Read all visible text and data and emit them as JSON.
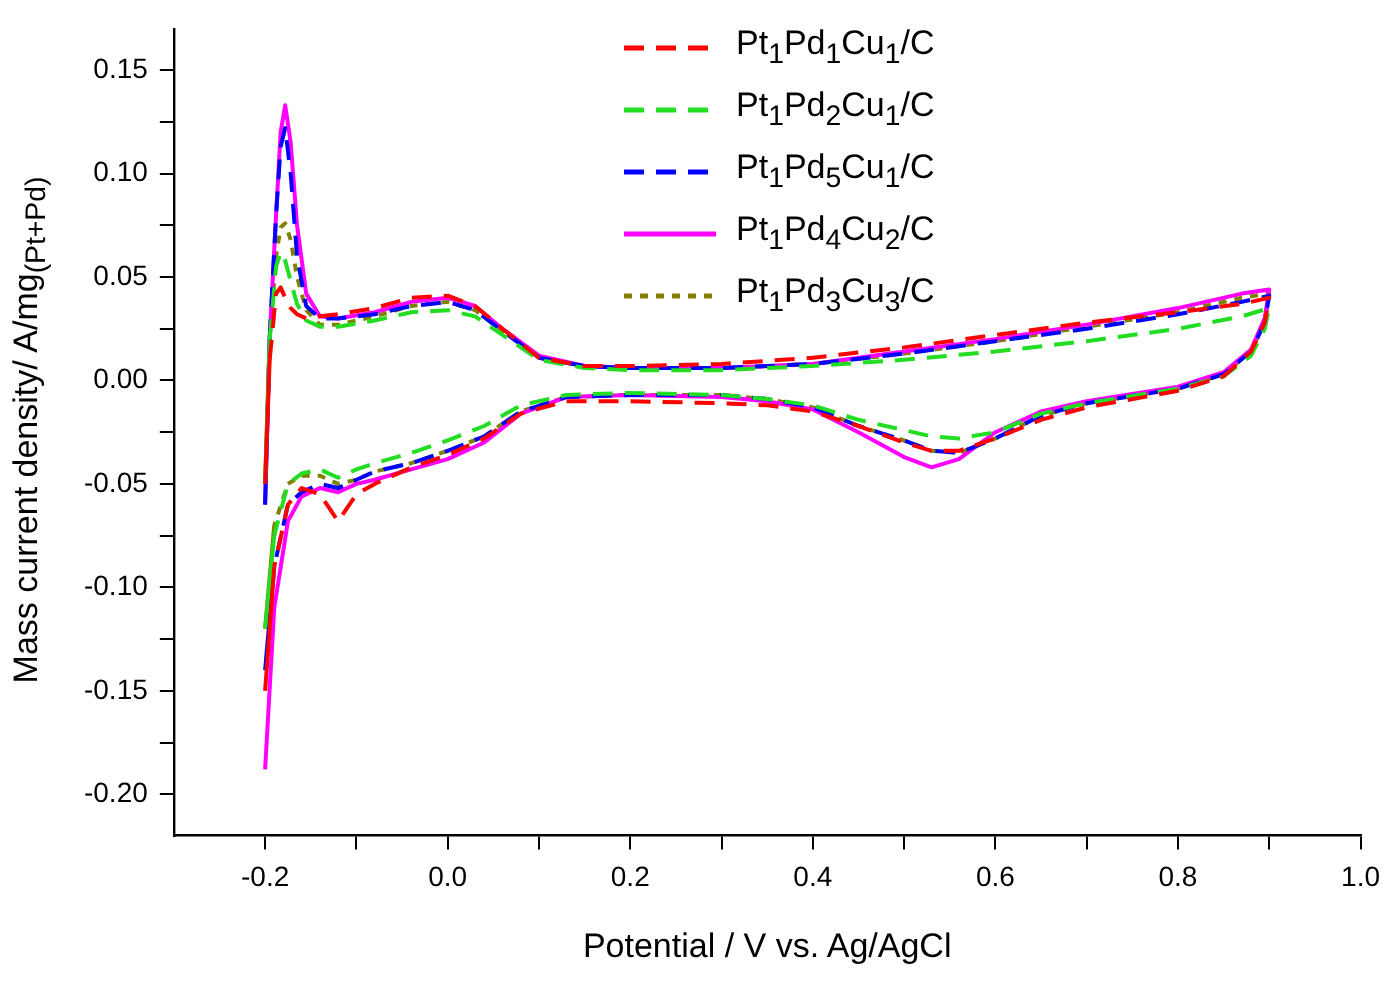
{
  "chart_data": {
    "type": "line",
    "xlabel": "Potential / V vs. Ag/AgCl",
    "ylabel": "Mass current density/ A/mg$_{(Pt+Pd)}$",
    "x": [
      -0.2,
      -0.195,
      -0.188,
      -0.183,
      -0.178,
      -0.172,
      -0.165,
      -0.155,
      -0.14,
      -0.12,
      -0.08,
      -0.04,
      0.0,
      0.03,
      0.06,
      0.1,
      0.15,
      0.2,
      0.3,
      0.4,
      0.5,
      0.6,
      0.7,
      0.8,
      0.87,
      0.9,
      0.895,
      0.88,
      0.85,
      0.8,
      0.7,
      0.65,
      0.6,
      0.56,
      0.53,
      0.5,
      0.45,
      0.4,
      0.35,
      0.3,
      0.2,
      0.13,
      0.08,
      0.04,
      0.0,
      -0.04,
      -0.08,
      -0.1,
      -0.12,
      -0.14,
      -0.16,
      -0.175,
      -0.19,
      -0.2
    ],
    "series": [
      {
        "name": "Pt$_{1}$Pd$_{1}$Cu$_{1}$/C",
        "color": "#ff0000",
        "line_style": "dashed",
        "values": [
          -0.05,
          0.01,
          0.042,
          0.045,
          0.04,
          0.035,
          0.032,
          0.03,
          0.031,
          0.032,
          0.035,
          0.04,
          0.041,
          0.036,
          0.025,
          0.011,
          0.007,
          0.007,
          0.008,
          0.011,
          0.016,
          0.022,
          0.028,
          0.033,
          0.037,
          0.04,
          0.028,
          0.014,
          0.002,
          -0.005,
          -0.013,
          -0.019,
          -0.028,
          -0.034,
          -0.034,
          -0.03,
          -0.022,
          -0.015,
          -0.012,
          -0.011,
          -0.01,
          -0.01,
          -0.016,
          -0.028,
          -0.036,
          -0.042,
          -0.05,
          -0.055,
          -0.068,
          -0.055,
          -0.052,
          -0.06,
          -0.09,
          -0.15
        ]
      },
      {
        "name": "Pt$_{1}$Pd$_{2}$Cu$_{1}$/C",
        "color": "#22dd22",
        "line_style": "dashed",
        "values": [
          -0.05,
          0.02,
          0.055,
          0.062,
          0.058,
          0.048,
          0.037,
          0.029,
          0.026,
          0.026,
          0.029,
          0.033,
          0.034,
          0.031,
          0.022,
          0.01,
          0.006,
          0.005,
          0.005,
          0.007,
          0.01,
          0.014,
          0.019,
          0.025,
          0.031,
          0.035,
          0.025,
          0.012,
          0.002,
          -0.004,
          -0.011,
          -0.016,
          -0.025,
          -0.028,
          -0.027,
          -0.024,
          -0.019,
          -0.012,
          -0.009,
          -0.007,
          -0.006,
          -0.007,
          -0.012,
          -0.022,
          -0.029,
          -0.035,
          -0.04,
          -0.043,
          -0.047,
          -0.043,
          -0.045,
          -0.05,
          -0.075,
          -0.12
        ]
      },
      {
        "name": "Pt$_{1}$Pd$_{5}$Cu$_{1}$/C",
        "color": "#0000ff",
        "line_style": "dashed",
        "values": [
          -0.06,
          0.02,
          0.08,
          0.113,
          0.122,
          0.1,
          0.06,
          0.036,
          0.03,
          0.03,
          0.032,
          0.036,
          0.038,
          0.034,
          0.024,
          0.011,
          0.007,
          0.006,
          0.006,
          0.008,
          0.013,
          0.019,
          0.025,
          0.032,
          0.038,
          0.041,
          0.028,
          0.014,
          0.003,
          -0.004,
          -0.011,
          -0.017,
          -0.028,
          -0.035,
          -0.034,
          -0.029,
          -0.022,
          -0.013,
          -0.009,
          -0.007,
          -0.007,
          -0.008,
          -0.015,
          -0.027,
          -0.034,
          -0.04,
          -0.044,
          -0.048,
          -0.052,
          -0.05,
          -0.054,
          -0.06,
          -0.09,
          -0.14
        ]
      },
      {
        "name": "Pt$_{1}$Pd$_{4}$Cu$_{2}$/C",
        "color": "#ff00ff",
        "line_style": "solid",
        "values": [
          -0.06,
          0.02,
          0.08,
          0.12,
          0.133,
          0.115,
          0.075,
          0.042,
          0.031,
          0.03,
          0.033,
          0.038,
          0.04,
          0.036,
          0.025,
          0.012,
          0.007,
          0.006,
          0.006,
          0.008,
          0.014,
          0.02,
          0.027,
          0.035,
          0.042,
          0.044,
          0.03,
          0.015,
          0.004,
          -0.003,
          -0.01,
          -0.015,
          -0.025,
          -0.038,
          -0.042,
          -0.037,
          -0.025,
          -0.014,
          -0.01,
          -0.008,
          -0.007,
          -0.008,
          -0.016,
          -0.03,
          -0.038,
          -0.043,
          -0.048,
          -0.05,
          -0.054,
          -0.052,
          -0.056,
          -0.068,
          -0.11,
          -0.188
        ]
      },
      {
        "name": "Pt$_{1}$Pd$_{3}$Cu$_{3}$/C",
        "color": "#808000",
        "line_style": "dotted",
        "values": [
          -0.05,
          0.02,
          0.06,
          0.074,
          0.076,
          0.068,
          0.05,
          0.034,
          0.027,
          0.027,
          0.031,
          0.036,
          0.038,
          0.034,
          0.024,
          0.011,
          0.007,
          0.006,
          0.006,
          0.008,
          0.013,
          0.019,
          0.026,
          0.033,
          0.04,
          0.042,
          0.028,
          0.014,
          0.003,
          -0.004,
          -0.011,
          -0.017,
          -0.028,
          -0.035,
          -0.034,
          -0.029,
          -0.022,
          -0.013,
          -0.009,
          -0.007,
          -0.007,
          -0.008,
          -0.015,
          -0.027,
          -0.034,
          -0.04,
          -0.044,
          -0.048,
          -0.05,
          -0.046,
          -0.046,
          -0.05,
          -0.07,
          -0.12
        ]
      }
    ],
    "xlim": [
      -0.3,
      1.0
    ],
    "xticks": [
      {
        "value": -0.2,
        "label": "-0.2"
      },
      {
        "value": -0.1,
        "label": null
      },
      {
        "value": 0,
        "label": "0.0"
      },
      {
        "value": 0.1,
        "label": null
      },
      {
        "value": 0.2,
        "label": "0.2"
      },
      {
        "value": 0.3,
        "label": null
      },
      {
        "value": 0.4,
        "label": "0.4"
      },
      {
        "value": 0.5,
        "label": null
      },
      {
        "value": 0.6,
        "label": "0.6"
      },
      {
        "value": 0.7,
        "label": null
      },
      {
        "value": 0.8,
        "label": "0.8"
      },
      {
        "value": 0.9,
        "label": null
      },
      {
        "value": 1.0,
        "label": "1.0"
      }
    ],
    "ylim": [
      -0.22,
      0.17
    ],
    "yticks": [
      {
        "value": -0.2,
        "label": "-0.20"
      },
      {
        "value": -0.175,
        "label": null
      },
      {
        "value": -0.15,
        "label": "-0.15"
      },
      {
        "value": -0.125,
        "label": null
      },
      {
        "value": -0.1,
        "label": "-0.10"
      },
      {
        "value": -0.075,
        "label": null
      },
      {
        "value": -0.05,
        "label": "-0.05"
      },
      {
        "value": -0.025,
        "label": null
      },
      {
        "value": 0,
        "label": "0.00"
      },
      {
        "value": 0.025,
        "label": null
      },
      {
        "value": 0.05,
        "label": "0.05"
      },
      {
        "value": 0.075,
        "label": null
      },
      {
        "value": 0.1,
        "label": "0.10"
      },
      {
        "value": 0.125,
        "label": null
      },
      {
        "value": 0.15,
        "label": "0.15"
      }
    ],
    "grid": false,
    "legend": "top right",
    "marker": "none"
  }
}
